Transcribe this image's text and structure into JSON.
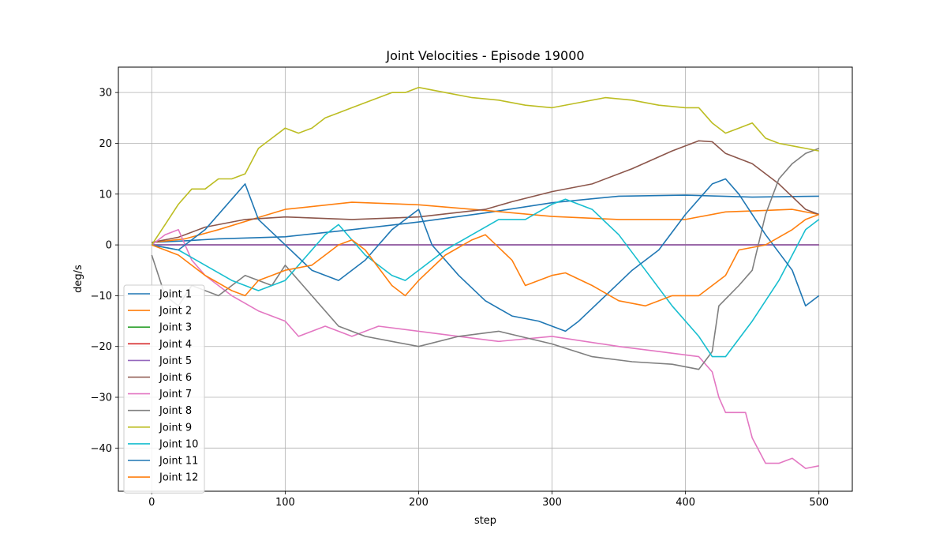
{
  "chart_data": {
    "type": "line",
    "title": "Joint Velocities - Episode 19000",
    "xlabel": "step",
    "ylabel": "deg/s",
    "xlim": [
      -25,
      525
    ],
    "ylim": [
      -48.5,
      35
    ],
    "xticks": [
      0,
      100,
      200,
      300,
      400,
      500
    ],
    "yticks": [
      -40,
      -30,
      -20,
      -10,
      0,
      10,
      20,
      30
    ],
    "grid": true,
    "legend_position": "lower-left",
    "series": [
      {
        "name": "Joint 1",
        "color": "#1f77b4",
        "points": [
          [
            0,
            0.5
          ],
          [
            25,
            0.8
          ],
          [
            50,
            1.2
          ],
          [
            100,
            1.6
          ],
          [
            150,
            3
          ],
          [
            200,
            4.5
          ],
          [
            250,
            6.3
          ],
          [
            300,
            8.3
          ],
          [
            350,
            9.6
          ],
          [
            400,
            9.8
          ],
          [
            450,
            9.4
          ],
          [
            500,
            9.6
          ]
        ]
      },
      {
        "name": "Joint 2",
        "color": "#ff7f0e",
        "points": [
          [
            0,
            0.5
          ],
          [
            25,
            1.2
          ],
          [
            50,
            3
          ],
          [
            75,
            5
          ],
          [
            100,
            7
          ],
          [
            150,
            8.4
          ],
          [
            200,
            7.9
          ],
          [
            250,
            6.8
          ],
          [
            300,
            5.6
          ],
          [
            350,
            5
          ],
          [
            400,
            5
          ],
          [
            430,
            6.5
          ],
          [
            460,
            6.8
          ],
          [
            480,
            7
          ],
          [
            500,
            6
          ]
        ]
      },
      {
        "name": "Joint 3",
        "color": "#2ca02c",
        "points": [
          [
            0,
            0
          ],
          [
            500,
            0
          ]
        ]
      },
      {
        "name": "Joint 4",
        "color": "#d62728",
        "points": [
          [
            0,
            0
          ],
          [
            500,
            0
          ]
        ]
      },
      {
        "name": "Joint 5",
        "color": "#9467bd",
        "points": [
          [
            0,
            0
          ],
          [
            500,
            0
          ]
        ]
      },
      {
        "name": "Joint 6",
        "color": "#8c564b",
        "points": [
          [
            0,
            0.5
          ],
          [
            20,
            1.5
          ],
          [
            40,
            3.5
          ],
          [
            70,
            5
          ],
          [
            100,
            5.5
          ],
          [
            150,
            5
          ],
          [
            200,
            5.5
          ],
          [
            250,
            7
          ],
          [
            270,
            8.5
          ],
          [
            300,
            10.5
          ],
          [
            330,
            12
          ],
          [
            360,
            15
          ],
          [
            390,
            18.5
          ],
          [
            410,
            20.5
          ],
          [
            420,
            20.3
          ],
          [
            430,
            18
          ],
          [
            450,
            16
          ],
          [
            470,
            12
          ],
          [
            490,
            7
          ],
          [
            500,
            6
          ]
        ]
      },
      {
        "name": "Joint 7",
        "color": "#e377c2",
        "points": [
          [
            0,
            0
          ],
          [
            10,
            2
          ],
          [
            20,
            3
          ],
          [
            30,
            -3
          ],
          [
            40,
            -6
          ],
          [
            60,
            -10
          ],
          [
            80,
            -13
          ],
          [
            100,
            -15
          ],
          [
            110,
            -18
          ],
          [
            130,
            -16
          ],
          [
            150,
            -18
          ],
          [
            170,
            -16
          ],
          [
            200,
            -17
          ],
          [
            230,
            -18
          ],
          [
            260,
            -19
          ],
          [
            300,
            -18
          ],
          [
            350,
            -20
          ],
          [
            380,
            -21
          ],
          [
            410,
            -22
          ],
          [
            420,
            -25
          ],
          [
            425,
            -30
          ],
          [
            430,
            -33
          ],
          [
            445,
            -33
          ],
          [
            450,
            -38
          ],
          [
            460,
            -43
          ],
          [
            470,
            -43
          ],
          [
            480,
            -42
          ],
          [
            490,
            -44
          ],
          [
            500,
            -43.5
          ]
        ]
      },
      {
        "name": "Joint 8",
        "color": "#7f7f7f",
        "points": [
          [
            0,
            -2
          ],
          [
            10,
            -10
          ],
          [
            20,
            -12
          ],
          [
            30,
            -8
          ],
          [
            50,
            -10
          ],
          [
            70,
            -6
          ],
          [
            90,
            -8
          ],
          [
            100,
            -4
          ],
          [
            120,
            -10
          ],
          [
            140,
            -16
          ],
          [
            160,
            -18
          ],
          [
            180,
            -19
          ],
          [
            200,
            -20
          ],
          [
            230,
            -18
          ],
          [
            260,
            -17
          ],
          [
            300,
            -19.5
          ],
          [
            330,
            -22
          ],
          [
            360,
            -23
          ],
          [
            390,
            -23.5
          ],
          [
            410,
            -24.5
          ],
          [
            420,
            -21
          ],
          [
            425,
            -12
          ],
          [
            440,
            -8
          ],
          [
            450,
            -5
          ],
          [
            460,
            6
          ],
          [
            470,
            13
          ],
          [
            480,
            16
          ],
          [
            490,
            18
          ],
          [
            500,
            19
          ]
        ]
      },
      {
        "name": "Joint 9",
        "color": "#bcbd22",
        "points": [
          [
            0,
            0
          ],
          [
            10,
            4
          ],
          [
            20,
            8
          ],
          [
            30,
            11
          ],
          [
            40,
            11
          ],
          [
            50,
            13
          ],
          [
            60,
            13
          ],
          [
            70,
            14
          ],
          [
            80,
            19
          ],
          [
            90,
            21
          ],
          [
            100,
            23
          ],
          [
            110,
            22
          ],
          [
            120,
            23
          ],
          [
            130,
            25
          ],
          [
            140,
            26
          ],
          [
            150,
            27
          ],
          [
            160,
            28
          ],
          [
            170,
            29
          ],
          [
            180,
            30
          ],
          [
            190,
            30
          ],
          [
            200,
            31
          ],
          [
            220,
            30
          ],
          [
            240,
            29
          ],
          [
            260,
            28.5
          ],
          [
            280,
            27.5
          ],
          [
            300,
            27
          ],
          [
            320,
            28
          ],
          [
            340,
            29
          ],
          [
            360,
            28.5
          ],
          [
            380,
            27.5
          ],
          [
            400,
            27
          ],
          [
            410,
            27
          ],
          [
            420,
            24
          ],
          [
            430,
            22
          ],
          [
            440,
            23
          ],
          [
            450,
            24
          ],
          [
            460,
            21
          ],
          [
            470,
            20
          ],
          [
            480,
            19.5
          ],
          [
            490,
            19
          ],
          [
            500,
            18.5
          ]
        ]
      },
      {
        "name": "Joint 10",
        "color": "#17becf",
        "points": [
          [
            0,
            0
          ],
          [
            20,
            -1
          ],
          [
            40,
            -4
          ],
          [
            60,
            -7
          ],
          [
            80,
            -9
          ],
          [
            100,
            -7
          ],
          [
            110,
            -4
          ],
          [
            130,
            2
          ],
          [
            140,
            4
          ],
          [
            160,
            -2
          ],
          [
            180,
            -6
          ],
          [
            190,
            -7
          ],
          [
            200,
            -5
          ],
          [
            220,
            -1
          ],
          [
            240,
            2
          ],
          [
            260,
            5
          ],
          [
            280,
            5
          ],
          [
            300,
            8
          ],
          [
            310,
            9
          ],
          [
            330,
            7
          ],
          [
            350,
            2
          ],
          [
            370,
            -5
          ],
          [
            390,
            -12
          ],
          [
            410,
            -18
          ],
          [
            420,
            -22
          ],
          [
            430,
            -22
          ],
          [
            450,
            -15
          ],
          [
            470,
            -7
          ],
          [
            480,
            -2
          ],
          [
            490,
            3
          ],
          [
            500,
            5
          ]
        ]
      },
      {
        "name": "Joint 11",
        "color": "#1f77b4",
        "points": [
          [
            0,
            0
          ],
          [
            20,
            -1
          ],
          [
            40,
            3
          ],
          [
            60,
            9
          ],
          [
            70,
            12
          ],
          [
            80,
            5
          ],
          [
            100,
            0
          ],
          [
            120,
            -5
          ],
          [
            140,
            -7
          ],
          [
            160,
            -3
          ],
          [
            180,
            3
          ],
          [
            200,
            7
          ],
          [
            210,
            0
          ],
          [
            230,
            -6
          ],
          [
            250,
            -11
          ],
          [
            270,
            -14
          ],
          [
            290,
            -15
          ],
          [
            300,
            -16
          ],
          [
            310,
            -17
          ],
          [
            320,
            -15
          ],
          [
            340,
            -10
          ],
          [
            360,
            -5
          ],
          [
            380,
            -1
          ],
          [
            400,
            6
          ],
          [
            420,
            12
          ],
          [
            430,
            13
          ],
          [
            440,
            10
          ],
          [
            460,
            2
          ],
          [
            480,
            -5
          ],
          [
            490,
            -12
          ],
          [
            500,
            -10
          ]
        ]
      },
      {
        "name": "Joint 12",
        "color": "#ff7f0e",
        "points": [
          [
            0,
            0
          ],
          [
            20,
            -2
          ],
          [
            40,
            -6
          ],
          [
            60,
            -9
          ],
          [
            70,
            -10
          ],
          [
            80,
            -7
          ],
          [
            90,
            -6
          ],
          [
            100,
            -5
          ],
          [
            120,
            -4
          ],
          [
            140,
            0
          ],
          [
            150,
            1
          ],
          [
            160,
            -1
          ],
          [
            180,
            -8
          ],
          [
            190,
            -10
          ],
          [
            200,
            -7
          ],
          [
            220,
            -2
          ],
          [
            240,
            1
          ],
          [
            250,
            2
          ],
          [
            270,
            -3
          ],
          [
            280,
            -8
          ],
          [
            300,
            -6
          ],
          [
            310,
            -5.5
          ],
          [
            330,
            -8
          ],
          [
            350,
            -11
          ],
          [
            370,
            -12
          ],
          [
            390,
            -10
          ],
          [
            410,
            -10
          ],
          [
            430,
            -6
          ],
          [
            440,
            -1
          ],
          [
            460,
            0
          ],
          [
            480,
            3
          ],
          [
            490,
            5
          ],
          [
            500,
            6
          ]
        ]
      }
    ]
  }
}
